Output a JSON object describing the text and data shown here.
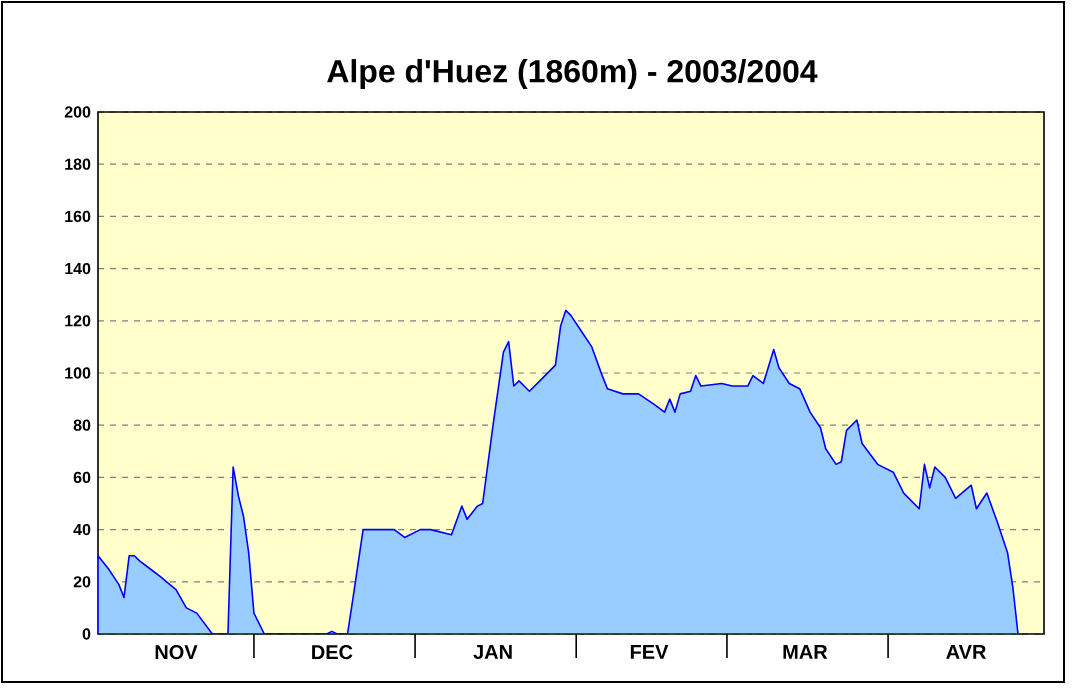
{
  "chart_data": {
    "type": "area",
    "title": "Alpe d'Huez (1860m) - 2003/2004",
    "x": [
      "2003-11-01",
      "2003-11-03",
      "2003-11-04",
      "2003-11-05",
      "2003-11-06",
      "2003-11-07",
      "2003-11-08",
      "2003-11-09",
      "2003-11-11",
      "2003-11-13",
      "2003-11-16",
      "2003-11-18",
      "2003-11-20",
      "2003-11-23",
      "2003-11-26",
      "2003-11-27",
      "2003-11-28",
      "2003-11-29",
      "2003-11-30",
      "2003-12-01",
      "2003-12-03",
      "2003-12-15",
      "2003-12-16",
      "2003-12-17",
      "2003-12-19",
      "2003-12-20",
      "2003-12-22",
      "2003-12-28",
      "2003-12-30",
      "2004-01-02",
      "2004-01-04",
      "2004-01-08",
      "2004-01-10",
      "2004-01-11",
      "2004-01-13",
      "2004-01-14",
      "2004-01-15",
      "2004-01-16",
      "2004-01-18",
      "2004-01-19",
      "2004-01-20",
      "2004-01-21",
      "2004-01-23",
      "2004-01-26",
      "2004-01-28",
      "2004-01-29",
      "2004-01-30",
      "2004-01-31",
      "2004-02-02",
      "2004-02-04",
      "2004-02-06",
      "2004-02-07",
      "2004-02-10",
      "2004-02-13",
      "2004-02-16",
      "2004-02-18",
      "2004-02-19",
      "2004-02-20",
      "2004-02-21",
      "2004-02-23",
      "2004-02-24",
      "2004-02-25",
      "2004-02-29",
      "2004-03-02",
      "2004-03-05",
      "2004-03-06",
      "2004-03-08",
      "2004-03-10",
      "2004-03-11",
      "2004-03-13",
      "2004-03-15",
      "2004-03-17",
      "2004-03-19",
      "2004-03-20",
      "2004-03-22",
      "2004-03-23",
      "2004-03-24",
      "2004-03-26",
      "2004-03-27",
      "2004-03-30",
      "2004-04-02",
      "2004-04-04",
      "2004-04-07",
      "2004-04-08",
      "2004-04-09",
      "2004-04-10",
      "2004-04-12",
      "2004-04-14",
      "2004-04-17",
      "2004-04-18",
      "2004-04-20",
      "2004-04-22",
      "2004-04-24",
      "2004-04-25",
      "2004-04-26"
    ],
    "values": [
      30,
      25,
      22,
      19,
      14,
      30,
      30,
      28,
      25,
      22,
      17,
      10,
      8,
      0,
      0,
      64,
      53,
      45,
      31,
      8,
      0,
      0,
      1,
      0,
      0,
      13,
      40,
      40,
      37,
      40,
      40,
      38,
      49,
      44,
      49,
      50,
      65,
      80,
      108,
      112,
      95,
      97,
      93,
      99,
      103,
      118,
      124,
      122,
      116,
      110,
      99,
      94,
      92,
      92,
      88,
      85,
      90,
      85,
      92,
      93,
      99,
      95,
      96,
      95,
      95,
      99,
      96,
      109,
      102,
      96,
      94,
      85,
      79,
      71,
      65,
      66,
      78,
      82,
      73,
      65,
      62,
      54,
      48,
      65,
      56,
      64,
      60,
      52,
      57,
      48,
      54,
      43,
      31,
      18,
      0
    ],
    "color": "#99ccff",
    "xlim": [
      "2003-11-01",
      "2004-05-01"
    ],
    "xticks": [
      {
        "value": "2003-11-16",
        "label": "NOV"
      },
      {
        "value": "2003-12-01",
        "label": null
      },
      {
        "value": "2003-12-16",
        "label": "DEC"
      },
      {
        "value": "2004-01-01",
        "label": null
      },
      {
        "value": "2004-01-16",
        "label": "JAN"
      },
      {
        "value": "2004-02-01",
        "label": null
      },
      {
        "value": "2004-02-15",
        "label": "FEV"
      },
      {
        "value": "2004-03-01",
        "label": null
      },
      {
        "value": "2004-03-16",
        "label": "MAR"
      },
      {
        "value": "2004-04-01",
        "label": null
      },
      {
        "value": "2004-04-16",
        "label": "AVR"
      }
    ],
    "ylim": [
      0,
      200
    ],
    "yticks": [
      0,
      20,
      40,
      60,
      80,
      100,
      120,
      140,
      160,
      180,
      200
    ],
    "grid": "y"
  }
}
